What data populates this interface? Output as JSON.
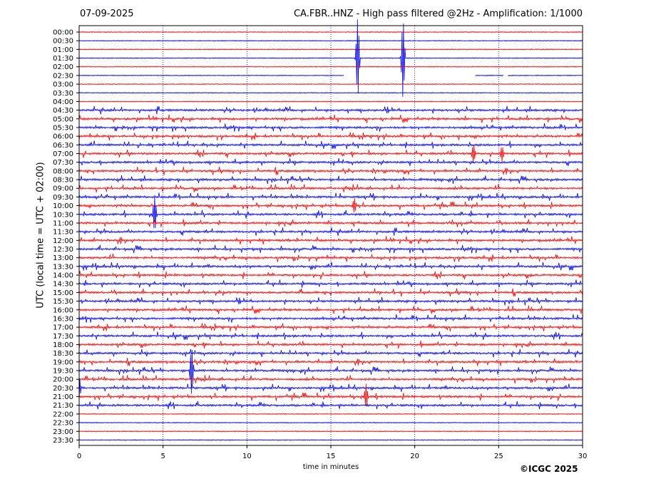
{
  "header": {
    "date": "07-09-2025",
    "title": "CA.FBR..HNZ - High pass filtered @2Hz - Amplification: 1/1000"
  },
  "copyright": "©ICGC 2025",
  "colors": {
    "trace_a": "#ff0000",
    "trace_b": "#0000ff",
    "grid": "#0000aa"
  },
  "chart_data": {
    "type": "line",
    "title": "CA.FBR..HNZ - High pass filtered @2Hz - Amplification: 1/1000",
    "xlabel": "time in minutes",
    "ylabel": "UTC (local time = UTC + 02:00)",
    "xlim": [
      0,
      30
    ],
    "x_ticks": [
      "0",
      "5",
      "10",
      "15",
      "20",
      "25",
      "30"
    ],
    "x_grid_minutes": [
      5,
      10,
      15,
      20,
      25
    ],
    "y_ticks": [
      "00:00",
      "00:30",
      "01:00",
      "01:30",
      "02:00",
      "02:30",
      "03:00",
      "03:30",
      "04:00",
      "04:30",
      "05:00",
      "05:30",
      "06:00",
      "06:30",
      "07:00",
      "07:30",
      "08:00",
      "08:30",
      "09:00",
      "09:30",
      "10:00",
      "10:30",
      "11:00",
      "11:30",
      "12:00",
      "12:30",
      "13:00",
      "13:30",
      "14:00",
      "14:30",
      "15:00",
      "15:30",
      "16:00",
      "16:30",
      "17:00",
      "17:30",
      "18:00",
      "18:30",
      "19:00",
      "19:30",
      "20:00",
      "20:30",
      "21:00",
      "21:30",
      "22:00",
      "22:30",
      "23:00",
      "23:30"
    ],
    "data_gaps": [
      {
        "row": "02:30",
        "from_minute": 15.8,
        "to_minute": 23.6
      },
      {
        "row": "02:30",
        "from_minute": 25.3,
        "to_minute": 25.5
      }
    ],
    "events": [
      {
        "row": "01:30",
        "minute": 16.6,
        "amplitude": 1.0
      },
      {
        "row": "01:30",
        "minute": 19.3,
        "amplitude": 1.0
      },
      {
        "row": "07:00",
        "minute": 23.5,
        "amplitude": 0.25
      },
      {
        "row": "07:00",
        "minute": 25.2,
        "amplitude": 0.2
      },
      {
        "row": "10:00",
        "minute": 16.4,
        "amplitude": 0.2
      },
      {
        "row": "10:30",
        "minute": 4.5,
        "amplitude": 0.45
      },
      {
        "row": "19:30",
        "minute": 6.7,
        "amplitude": 0.6
      },
      {
        "row": "20:30",
        "minute": 0.0,
        "amplitude": 0.3
      },
      {
        "row": "21:00",
        "minute": 17.1,
        "amplitude": 0.3
      }
    ],
    "grid": true
  }
}
